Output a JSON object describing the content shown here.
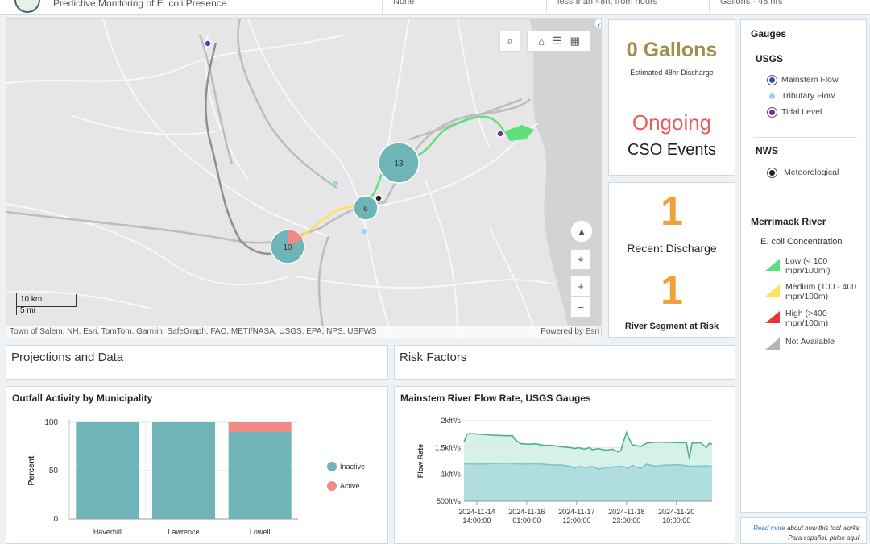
{
  "header": {
    "subtitle": "Predictive Monitoring of E. coli Presence",
    "filter_1": "None",
    "filter_2": "less than 48h, from hours",
    "filter_3": "Gallons · 48 hrs"
  },
  "map": {
    "clusters": [
      {
        "label": "13"
      },
      {
        "label": "6"
      },
      {
        "label": "10"
      }
    ],
    "scale": {
      "km": "10 km",
      "mi": "5 mi"
    },
    "attribution": "Town of Salem, NH, Esri, TomTom, Garmin, SafeGraph, FAO, METI/NASA, USGS, EPA, NPS, USFWS",
    "powered_by": "Powered by Esri",
    "icons": [
      "search-icon",
      "home-icon",
      "legend-list-icon",
      "grid-icon",
      "expand-icon",
      "compass-icon",
      "locate-icon",
      "zoom-in-icon",
      "zoom-out-icon"
    ]
  },
  "discharge": {
    "value": "0 Gallons",
    "label": "Estimated 48hr Discharge",
    "color": "#a08f4f"
  },
  "cso": {
    "status": "Ongoing",
    "label": "CSO Events",
    "status_color": "#e85d5d"
  },
  "recent": {
    "value": "1",
    "label": "Recent Discharge",
    "color": "#f0a23a"
  },
  "segment": {
    "value": "1",
    "label": "River Segment at Risk",
    "color": "#f0a23a"
  },
  "legend": {
    "title": "Gauges",
    "usgs_title": "USGS",
    "usgs_items": [
      {
        "label": "Mainstem Flow",
        "color": "#2f4fbf"
      },
      {
        "label": "Tributary Flow",
        "color": "#8fd7ee"
      },
      {
        "label": "Tidal Level",
        "color": "#7a2f8f"
      }
    ],
    "nws_title": "NWS",
    "nws_items": [
      {
        "label": "Meteorological",
        "color": "#222222"
      }
    ],
    "river_title": "Merrimack River",
    "river_subtitle": "E. coli Concentration",
    "river_items": [
      {
        "label": "Low (< 100 mpn/100ml)",
        "color": "#5ee07a"
      },
      {
        "label": "Medium (100 - 400 mpn/100m)",
        "color": "#ffe15a"
      },
      {
        "label": "High (>400 mpn/100m)",
        "color": "#e8333a"
      },
      {
        "label": "Not Available",
        "color": "#b5b5b5"
      }
    ]
  },
  "footer": {
    "read_more": "Read more",
    "read_more_rest": " about how this tool works.",
    "spanish": "Para español, pulse aquí."
  },
  "sections": {
    "projections": "Projections and Data",
    "risk": "Risk Factors"
  },
  "outfall_chart_title": "Outfall Activity by Municipality",
  "flow_chart_title": "Mainstem River Flow Rate, USGS Gauges",
  "chart_data": [
    {
      "type": "bar",
      "title": "Outfall Activity by Municipality",
      "categories": [
        "Haverhill",
        "Lawrence",
        "Lowell"
      ],
      "series": [
        {
          "name": "Inactive",
          "values": [
            100,
            100,
            90
          ],
          "color": "#6fb5b8"
        },
        {
          "name": "Active",
          "values": [
            0,
            0,
            10
          ],
          "color": "#ee8a88"
        }
      ],
      "ylabel": "Percent",
      "ylim": [
        0,
        100
      ],
      "yticks": [
        0,
        50,
        100
      ],
      "stacked": true,
      "legend": "right"
    },
    {
      "type": "area",
      "title": "Mainstem River Flow Rate, USGS Gauges",
      "ylabel": "Flow Rate",
      "ylim": [
        500,
        2000
      ],
      "yticks": [
        {
          "v": 500,
          "label": "500ft³/s"
        },
        {
          "v": 1000,
          "label": "1kft³/s"
        },
        {
          "v": 1500,
          "label": "1.5kft³/s"
        },
        {
          "v": 2000,
          "label": "2kft³/s"
        }
      ],
      "xlim": [
        0,
        174
      ],
      "xticks": [
        {
          "v": 9,
          "l1": "2024-11-14",
          "l2": "14:00:00"
        },
        {
          "v": 44,
          "l1": "2024-11-16",
          "l2": "01:00:00"
        },
        {
          "v": 79,
          "l1": "2024-11-17",
          "l2": "12:00:00"
        },
        {
          "v": 114,
          "l1": "2024-11-18",
          "l2": "23:00:00"
        },
        {
          "v": 149,
          "l1": "2024-11-20",
          "l2": "10:00:00"
        }
      ],
      "series": [
        {
          "name": "",
          "color": "#4faf8a",
          "fill": "#cfeee2",
          "x": [
            0,
            2,
            4,
            10,
            20,
            30,
            34,
            36,
            40,
            46,
            50,
            56,
            62,
            66,
            70,
            74,
            78,
            80,
            84,
            86,
            88,
            90,
            94,
            100,
            104,
            108,
            110,
            112,
            114,
            116,
            118,
            120,
            124,
            128,
            134,
            140,
            150,
            156,
            158,
            160,
            162,
            166,
            170,
            172,
            174
          ],
          "y": [
            1600,
            1740,
            1760,
            1750,
            1730,
            1720,
            1720,
            1640,
            1570,
            1560,
            1570,
            1540,
            1540,
            1520,
            1510,
            1500,
            1480,
            1500,
            1470,
            1480,
            1500,
            1460,
            1480,
            1450,
            1470,
            1420,
            1440,
            1620,
            1780,
            1650,
            1550,
            1540,
            1520,
            1580,
            1600,
            1600,
            1590,
            1590,
            1300,
            1590,
            1580,
            1590,
            1500,
            1580,
            1560
          ]
        },
        {
          "name": "",
          "color": "#7fc4cc",
          "fill": "#a9d9dc",
          "x": [
            0,
            4,
            10,
            20,
            30,
            40,
            50,
            60,
            70,
            74,
            78,
            80,
            86,
            90,
            94,
            100,
            110,
            116,
            118,
            120,
            124,
            128,
            134,
            140,
            150,
            160,
            170,
            174
          ],
          "y": [
            1190,
            1200,
            1190,
            1200,
            1210,
            1190,
            1200,
            1180,
            1170,
            1150,
            1120,
            1150,
            1130,
            1150,
            1100,
            1130,
            1150,
            1120,
            1170,
            1140,
            1110,
            1190,
            1150,
            1170,
            1180,
            1150,
            1160,
            1150
          ]
        }
      ]
    }
  ]
}
